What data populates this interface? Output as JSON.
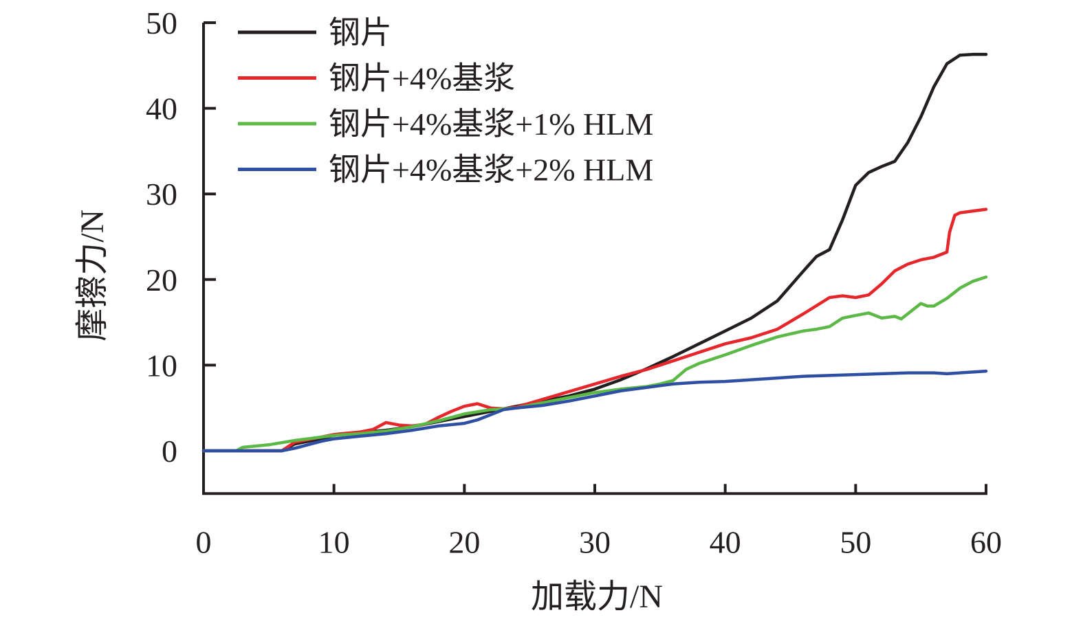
{
  "chart_data": {
    "type": "line",
    "xlabel": "加载力/N",
    "ylabel": "摩擦力/N",
    "xlim": [
      0,
      60
    ],
    "ylim": [
      -5,
      50
    ],
    "xticks": [
      0,
      10,
      20,
      30,
      40,
      50,
      60
    ],
    "yticks": [
      0,
      10,
      20,
      30,
      40,
      50
    ],
    "xtick_labels": [
      "0",
      "10",
      "20",
      "30",
      "40",
      "50",
      "60"
    ],
    "ytick_labels": [
      "0",
      "10",
      "20",
      "30",
      "40",
      "50"
    ],
    "grid": false,
    "legend_position": "top-left",
    "series": [
      {
        "name": "钢片",
        "color": "#231f20",
        "x": [
          0,
          4,
          6,
          7,
          9,
          10,
          12,
          14,
          16,
          18,
          20,
          22,
          24,
          26,
          28,
          30,
          32,
          34,
          36,
          38,
          40,
          42,
          44,
          46,
          47,
          48,
          49,
          50,
          51,
          52,
          53,
          54,
          55,
          56,
          57,
          58,
          59,
          60
        ],
        "y": [
          0,
          0,
          0,
          0.8,
          1.4,
          1.8,
          2.1,
          2.4,
          2.8,
          3.4,
          4.0,
          4.6,
          5.2,
          5.8,
          6.4,
          7.2,
          8.3,
          9.6,
          11.0,
          12.5,
          14.0,
          15.5,
          17.5,
          21.0,
          22.7,
          23.5,
          27.0,
          31.0,
          32.5,
          33.2,
          33.8,
          36.0,
          39.0,
          42.5,
          45.2,
          46.2,
          46.3,
          46.3
        ]
      },
      {
        "name": "钢片+4%基浆",
        "color": "#e5262b",
        "x": [
          0,
          4,
          6,
          7,
          9,
          10,
          12,
          13,
          14,
          15,
          16,
          17,
          18,
          19,
          20,
          21,
          22,
          23,
          24,
          26,
          28,
          30,
          32,
          34,
          36,
          38,
          40,
          42,
          44,
          46,
          48,
          49,
          50,
          51,
          52,
          53,
          54,
          55,
          56,
          57,
          57.2,
          57.6,
          58,
          59,
          60
        ],
        "y": [
          0,
          0,
          0,
          1.0,
          1.6,
          1.9,
          2.2,
          2.5,
          3.3,
          3.0,
          2.9,
          3.1,
          3.9,
          4.6,
          5.2,
          5.5,
          5.0,
          4.9,
          5.1,
          6.0,
          6.9,
          7.8,
          8.7,
          9.5,
          10.5,
          11.5,
          12.5,
          13.2,
          14.2,
          16.0,
          17.9,
          18.1,
          17.9,
          18.2,
          19.5,
          21.0,
          21.8,
          22.3,
          22.6,
          23.2,
          25.5,
          27.5,
          27.8,
          28.0,
          28.2
        ]
      },
      {
        "name": "钢片+4%基浆+1% HLM",
        "color": "#5cb947",
        "x": [
          0,
          2.5,
          3,
          5,
          7,
          9,
          10,
          12,
          14,
          16,
          18,
          20,
          22,
          24,
          26,
          28,
          30,
          32,
          34,
          35,
          36,
          37,
          38,
          40,
          42,
          44,
          46,
          47,
          48,
          49,
          50,
          51,
          52,
          53,
          53.5,
          54,
          55,
          55.5,
          56,
          57,
          58,
          59,
          60
        ],
        "y": [
          0,
          0,
          0.4,
          0.7,
          1.2,
          1.6,
          1.8,
          2.0,
          2.3,
          2.8,
          3.5,
          4.3,
          4.8,
          5.0,
          5.6,
          6.2,
          6.8,
          7.2,
          7.5,
          7.8,
          8.2,
          9.5,
          10.2,
          11.2,
          12.3,
          13.3,
          14.0,
          14.2,
          14.5,
          15.5,
          15.8,
          16.1,
          15.5,
          15.7,
          15.4,
          16.0,
          17.2,
          16.9,
          16.9,
          17.8,
          19.0,
          19.8,
          20.3
        ]
      },
      {
        "name": "钢片+4%基浆+2% HLM",
        "color": "#2e4fa3",
        "x": [
          0,
          6,
          7,
          8,
          9,
          10,
          12,
          14,
          16,
          18,
          20,
          21,
          22,
          23,
          24,
          26,
          28,
          30,
          32,
          34,
          36,
          38,
          40,
          42,
          44,
          46,
          48,
          50,
          52,
          54,
          56,
          57,
          58,
          59,
          60
        ],
        "y": [
          0,
          0,
          0.3,
          0.7,
          1.1,
          1.4,
          1.7,
          2.0,
          2.4,
          2.9,
          3.2,
          3.6,
          4.2,
          4.8,
          5.0,
          5.3,
          5.8,
          6.4,
          7.0,
          7.4,
          7.8,
          8.0,
          8.1,
          8.3,
          8.5,
          8.7,
          8.8,
          8.9,
          9.0,
          9.1,
          9.1,
          9.0,
          9.1,
          9.2,
          9.3
        ]
      }
    ]
  }
}
